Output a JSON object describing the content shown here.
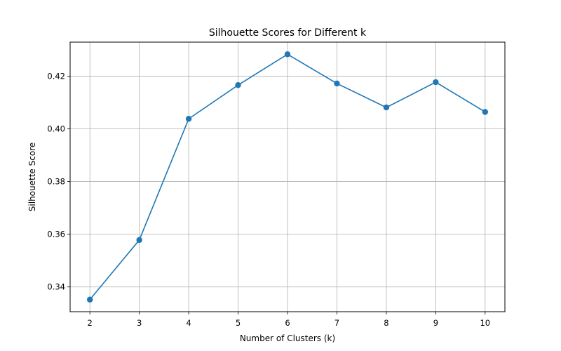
{
  "chart_data": {
    "type": "line",
    "title": "Silhouette Scores for Different k",
    "xlabel": "Number of Clusters (k)",
    "ylabel": "Silhouette Score",
    "x": [
      2,
      3,
      4,
      5,
      6,
      7,
      8,
      9,
      10
    ],
    "series": [
      {
        "values": [
          0.3352,
          0.3578,
          0.4038,
          0.4166,
          0.4283,
          0.4172,
          0.4081,
          0.4177,
          0.4064
        ],
        "color": "#1f77b4",
        "marker": "circle"
      }
    ],
    "xticks": [
      "2",
      "3",
      "4",
      "5",
      "6",
      "7",
      "8",
      "9",
      "10"
    ],
    "yticks": [
      "0.34",
      "0.36",
      "0.38",
      "0.40",
      "0.42"
    ],
    "ytick_values": [
      0.34,
      0.36,
      0.38,
      0.4,
      0.42
    ],
    "xlim": [
      1.6,
      10.4
    ],
    "ylim": [
      0.3306,
      0.4329
    ],
    "grid": true,
    "legend": "none"
  }
}
